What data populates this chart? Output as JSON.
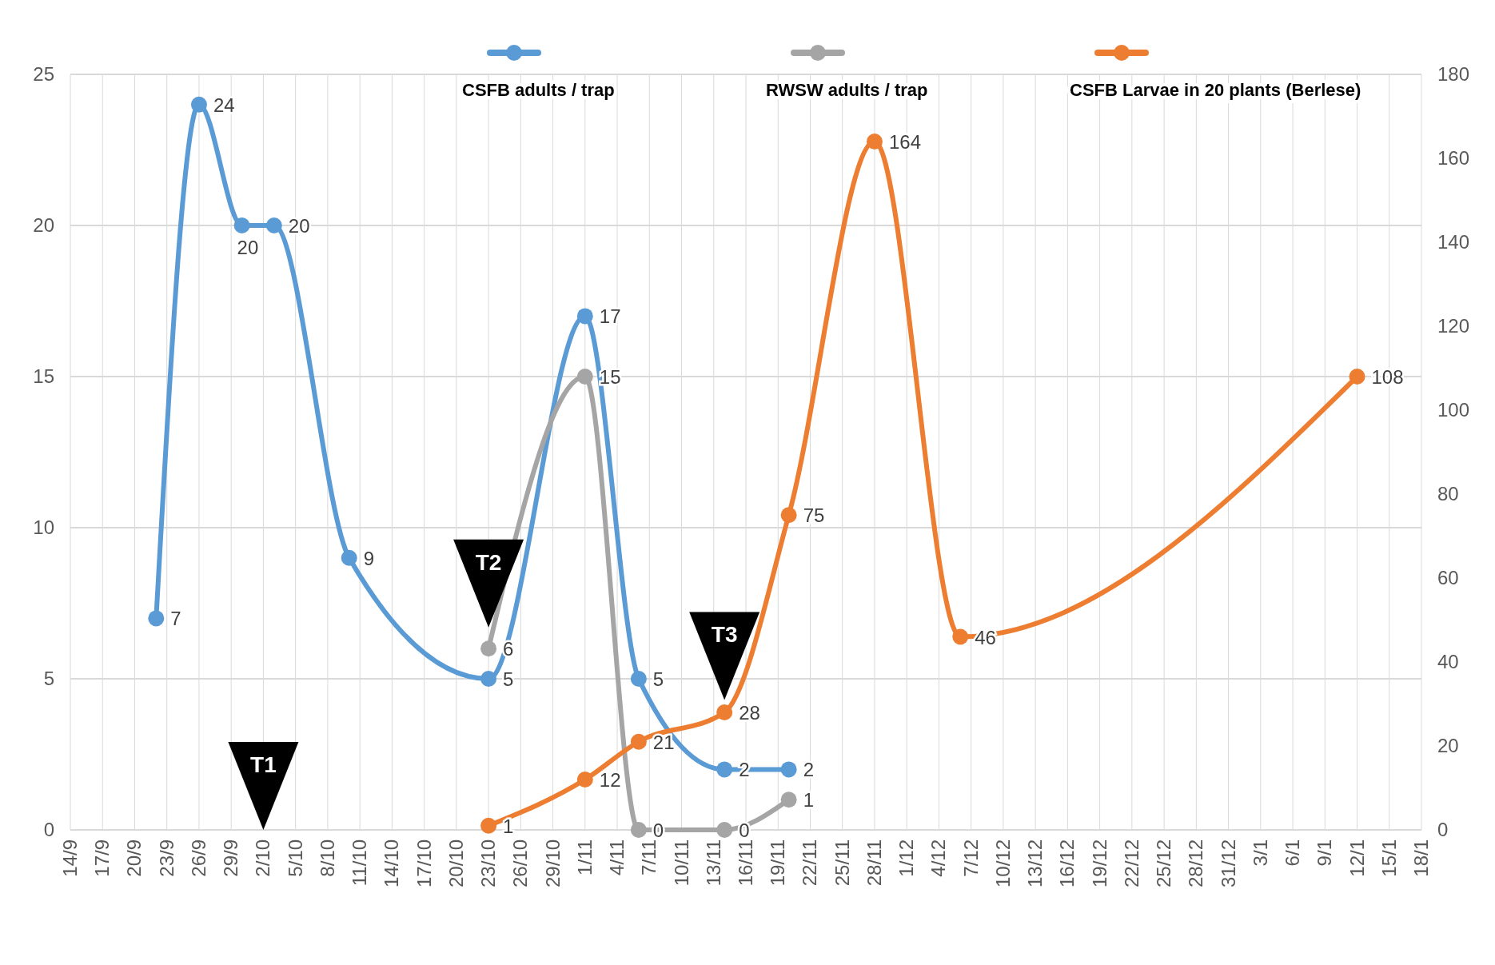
{
  "chart_data": {
    "type": "line",
    "categories": [
      "14/9",
      null,
      null,
      "17/9",
      null,
      null,
      "20/9",
      null,
      null,
      "23/9",
      null,
      null,
      "26/9",
      null,
      null,
      "29/9",
      null,
      null,
      "2/10",
      null,
      null,
      "5/10",
      null,
      null,
      "8/10",
      null,
      null,
      "11/10",
      null,
      null,
      "14/10",
      null,
      null,
      "17/10",
      null,
      null,
      "20/10",
      null,
      null,
      "23/10",
      null,
      null,
      "26/10",
      null,
      null,
      "29/10",
      null,
      null,
      "1/11",
      null,
      null,
      "4/11",
      null,
      null,
      "7/11",
      null,
      null,
      "10/11",
      null,
      null,
      "13/11",
      null,
      null,
      "16/11",
      null,
      null,
      "19/11",
      null,
      null,
      "22/11",
      null,
      null,
      "25/11",
      null,
      null,
      "28/11",
      null,
      null,
      "1/12",
      null,
      null,
      "4/12",
      null,
      null,
      "7/12",
      null,
      null,
      "10/12",
      null,
      null,
      "13/12",
      null,
      null,
      "16/12",
      null,
      null,
      "19/12",
      null,
      null,
      "22/12",
      null,
      null,
      "25/12",
      null,
      null,
      "28/12",
      null,
      null,
      "31/12",
      null,
      null,
      "3/1",
      null,
      null,
      "6/1",
      null,
      null,
      "9/1",
      null,
      null,
      "12/1",
      null,
      null,
      "15/1",
      null,
      null,
      "18/1"
    ],
    "series": [
      {
        "name": "CSFB adults / trap",
        "color": "#5b9bd5",
        "values": [
          null,
          null,
          null,
          null,
          null,
          null,
          null,
          null,
          7,
          null,
          null,
          null,
          24,
          null,
          null,
          null,
          20,
          null,
          null,
          20,
          null,
          null,
          null,
          null,
          null,
          null,
          9,
          null,
          null,
          null,
          null,
          null,
          null,
          null,
          null,
          null,
          null,
          null,
          null,
          5,
          null,
          null,
          null,
          null,
          null,
          null,
          null,
          null,
          17,
          null,
          null,
          null,
          null,
          5,
          null,
          null,
          null,
          null,
          null,
          null,
          null,
          2,
          null,
          null,
          null,
          null,
          null,
          2,
          null,
          null,
          null,
          null,
          null,
          null,
          null,
          null,
          null,
          null,
          null,
          null,
          null,
          null,
          null,
          null,
          null,
          null,
          null,
          null,
          null,
          null,
          null,
          null,
          null,
          null,
          null,
          null,
          null,
          null,
          null,
          null,
          null,
          null,
          null,
          null,
          null,
          null,
          null,
          null,
          null,
          null,
          null,
          null,
          null,
          null,
          null,
          null,
          null,
          null,
          null,
          null,
          null,
          null,
          null,
          null,
          null,
          null,
          null
        ]
      },
      {
        "name": "RWSW adults / trap",
        "color": "#a5a5a5",
        "values": [
          null,
          null,
          null,
          null,
          null,
          null,
          null,
          null,
          null,
          null,
          null,
          null,
          null,
          null,
          null,
          null,
          null,
          null,
          null,
          null,
          null,
          null,
          null,
          null,
          null,
          null,
          null,
          null,
          null,
          null,
          null,
          null,
          null,
          null,
          null,
          null,
          null,
          null,
          null,
          6,
          null,
          null,
          null,
          null,
          null,
          null,
          null,
          null,
          15,
          null,
          null,
          null,
          null,
          0,
          null,
          null,
          null,
          null,
          null,
          null,
          null,
          0,
          null,
          null,
          null,
          null,
          null,
          1,
          null,
          null,
          null,
          null,
          null,
          null,
          null,
          null,
          null,
          null,
          null,
          null,
          null,
          null,
          null,
          null,
          null,
          null,
          null,
          null,
          null,
          null,
          null,
          null,
          null,
          null,
          null,
          null,
          null,
          null,
          null,
          null,
          null,
          null,
          null,
          null,
          null,
          null,
          null,
          null,
          null,
          null,
          null,
          null,
          null,
          null,
          null,
          null,
          null,
          null,
          null,
          null,
          null,
          null,
          null,
          null,
          null,
          null,
          null
        ]
      },
      {
        "name": "CSFB Larvae in 20 plants (Berlese)",
        "color": "#ed7d31",
        "axis": "y2",
        "values": [
          null,
          null,
          null,
          null,
          null,
          null,
          null,
          null,
          null,
          null,
          null,
          null,
          null,
          null,
          null,
          null,
          null,
          null,
          null,
          null,
          null,
          null,
          null,
          null,
          null,
          null,
          null,
          null,
          null,
          null,
          null,
          null,
          null,
          null,
          null,
          null,
          null,
          null,
          null,
          1,
          null,
          null,
          null,
          null,
          null,
          null,
          null,
          null,
          12,
          null,
          null,
          null,
          null,
          21,
          null,
          null,
          null,
          null,
          null,
          null,
          null,
          28,
          null,
          null,
          null,
          null,
          null,
          75,
          null,
          null,
          null,
          null,
          null,
          null,
          null,
          164,
          null,
          null,
          null,
          null,
          null,
          null,
          null,
          46,
          null,
          null,
          null,
          null,
          null,
          null,
          null,
          null,
          null,
          null,
          null,
          null,
          null,
          null,
          null,
          null,
          null,
          null,
          null,
          null,
          null,
          null,
          null,
          null,
          null,
          null,
          null,
          null,
          null,
          null,
          null,
          null,
          null,
          null,
          null,
          null,
          108,
          null,
          null,
          null,
          null,
          null,
          null
        ]
      }
    ],
    "ylim": [
      0,
      25
    ],
    "yticks": [
      0,
      5,
      10,
      15,
      20,
      25
    ],
    "y2lim": [
      0,
      180
    ],
    "y2ticks": [
      0,
      20,
      40,
      60,
      80,
      100,
      120,
      140,
      160,
      180
    ],
    "annotations": [
      "T1",
      "T2",
      "T3"
    ],
    "grid": true,
    "legend": "top",
    "marker": "circle",
    "line_style": "solid",
    "data_labels": true
  }
}
